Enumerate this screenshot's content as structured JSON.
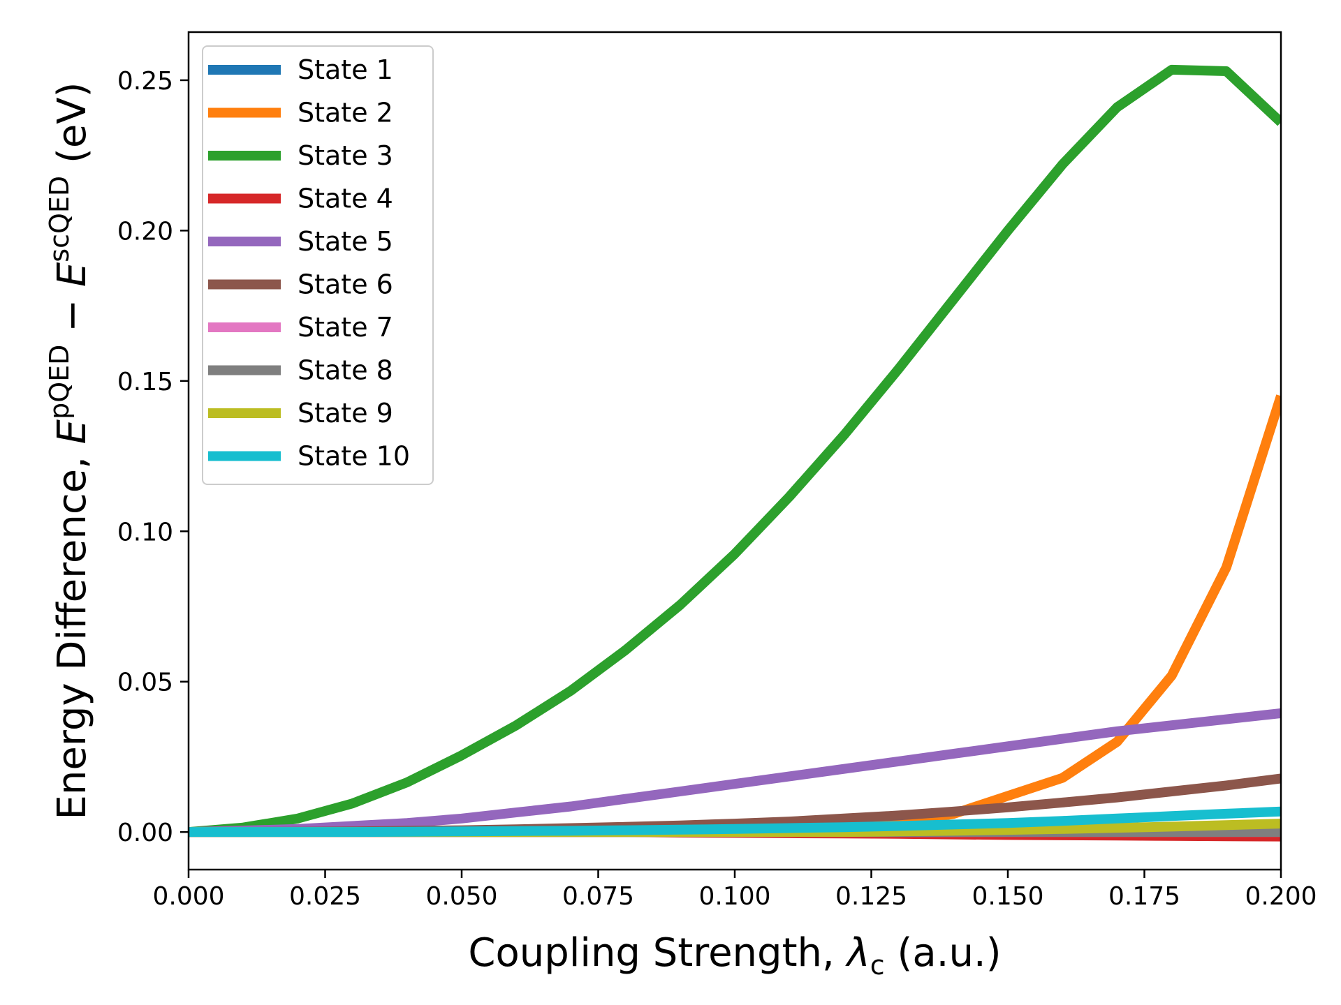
{
  "chart_data": {
    "type": "line",
    "title": "",
    "xlabel": {
      "prefix": "Coupling Strength, ",
      "symbol": "λ",
      "subscript": "c",
      "suffix": " (a.u.)"
    },
    "ylabel": {
      "prefix": "Energy Difference, ",
      "term1": "E",
      "sup1": "pQED",
      "minus": " − ",
      "term2": "E",
      "sup2": "scQED",
      "suffix": " (eV)"
    },
    "xlim": [
      0.0,
      0.2
    ],
    "ylim": [
      -0.0125,
      0.266
    ],
    "xticks": [
      0.0,
      0.025,
      0.05,
      0.075,
      0.1,
      0.125,
      0.15,
      0.175,
      0.2
    ],
    "xtick_labels": [
      "0.000",
      "0.025",
      "0.050",
      "0.075",
      "0.100",
      "0.125",
      "0.150",
      "0.175",
      "0.200"
    ],
    "yticks": [
      0.0,
      0.05,
      0.1,
      0.15,
      0.2,
      0.25
    ],
    "ytick_labels": [
      "0.00",
      "0.05",
      "0.10",
      "0.15",
      "0.20",
      "0.25"
    ],
    "grid": false,
    "legend_position": "top-left",
    "x": [
      0.0,
      0.01,
      0.02,
      0.03,
      0.04,
      0.05,
      0.06,
      0.07,
      0.08,
      0.09,
      0.1,
      0.11,
      0.12,
      0.13,
      0.14,
      0.15,
      0.16,
      0.17,
      0.18,
      0.19,
      0.2
    ],
    "series": [
      {
        "name": "State 1",
        "color": "#1f77b4",
        "values": [
          0,
          0,
          0,
          0,
          0,
          0,
          0,
          0,
          0,
          0,
          0,
          0,
          0,
          0,
          0,
          0,
          0,
          0,
          0,
          0,
          0
        ]
      },
      {
        "name": "State 2",
        "color": "#ff7f0e",
        "values": [
          0,
          0,
          0,
          0,
          0,
          0,
          0,
          0,
          0,
          0.0005,
          0.001,
          0.0015,
          0.002,
          0.003,
          0.006,
          0.012,
          0.018,
          0.03,
          0.052,
          0.088,
          0.145
        ]
      },
      {
        "name": "State 3",
        "color": "#2ca02c",
        "values": [
          0,
          0.0015,
          0.0045,
          0.0095,
          0.0165,
          0.0255,
          0.0355,
          0.047,
          0.0605,
          0.0755,
          0.0925,
          0.1115,
          0.132,
          0.154,
          0.177,
          0.2,
          0.222,
          0.241,
          0.2535,
          0.253,
          0.236
        ]
      },
      {
        "name": "State 4",
        "color": "#d62728",
        "values": [
          0,
          0,
          0,
          0,
          0,
          0,
          0,
          0,
          0,
          -0.0002,
          -0.0003,
          -0.0004,
          -0.0005,
          -0.0006,
          -0.0008,
          -0.001,
          -0.0011,
          -0.0012,
          -0.0013,
          -0.0014,
          -0.0015
        ]
      },
      {
        "name": "State 5",
        "color": "#9467bd",
        "values": [
          0,
          0.0005,
          0.001,
          0.002,
          0.003,
          0.0045,
          0.0065,
          0.0085,
          0.011,
          0.0135,
          0.016,
          0.0185,
          0.021,
          0.0235,
          0.026,
          0.0285,
          0.031,
          0.0335,
          0.0355,
          0.0375,
          0.0395
        ]
      },
      {
        "name": "State 6",
        "color": "#8c564b",
        "values": [
          0,
          0,
          0.0001,
          0.0002,
          0.0004,
          0.0006,
          0.0009,
          0.0013,
          0.0017,
          0.0022,
          0.0028,
          0.0035,
          0.0045,
          0.0055,
          0.0068,
          0.0082,
          0.0098,
          0.0115,
          0.0135,
          0.0155,
          0.0178
        ]
      },
      {
        "name": "State 7",
        "color": "#e377c2",
        "values": [
          0,
          0,
          0,
          0,
          0,
          0,
          0,
          0,
          0,
          0,
          0,
          0,
          0,
          0,
          0,
          0,
          0,
          0,
          0,
          0,
          0
        ]
      },
      {
        "name": "State 8",
        "color": "#7f7f7f",
        "values": [
          0,
          0,
          0,
          0,
          0,
          0,
          0,
          0,
          0,
          0,
          0,
          0,
          0,
          0,
          0,
          0,
          0,
          0,
          0,
          0,
          0
        ]
      },
      {
        "name": "State 9",
        "color": "#bcbd22",
        "values": [
          0,
          0,
          0,
          0,
          0,
          0,
          0,
          0,
          0,
          0,
          0,
          0,
          0,
          0.0002,
          0.0004,
          0.0007,
          0.001,
          0.0014,
          0.0018,
          0.0023,
          0.0028
        ]
      },
      {
        "name": "State 10",
        "color": "#17becf",
        "values": [
          0,
          0,
          0,
          0,
          0.0001,
          0.0002,
          0.0003,
          0.0004,
          0.0006,
          0.0008,
          0.001,
          0.0013,
          0.0016,
          0.002,
          0.0025,
          0.003,
          0.0037,
          0.0045,
          0.0053,
          0.0061,
          0.0068
        ]
      }
    ]
  }
}
